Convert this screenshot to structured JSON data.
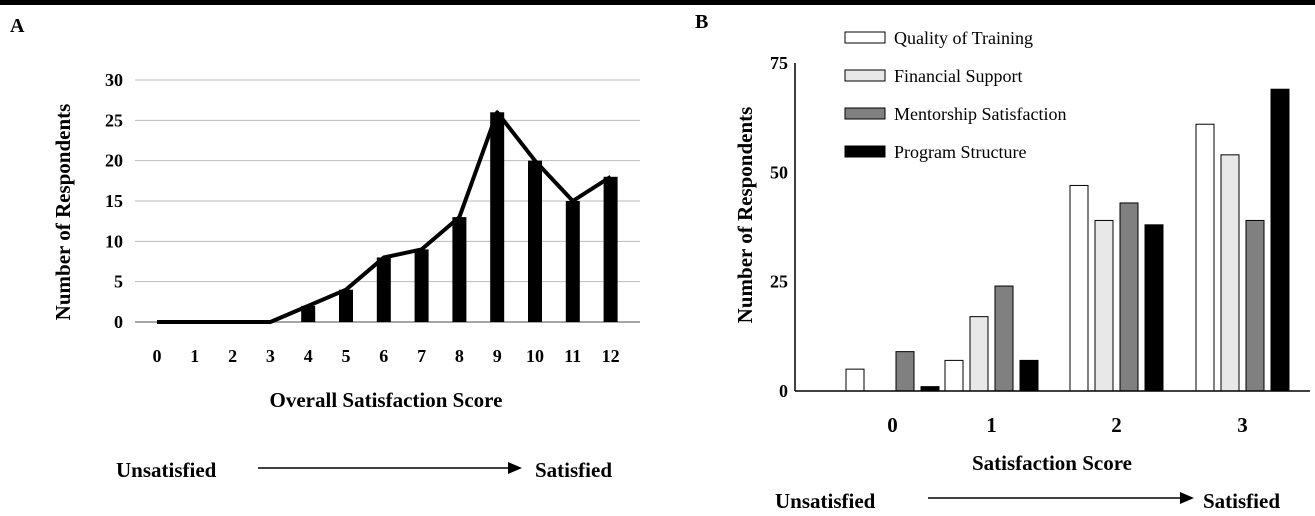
{
  "chart_data": [
    {
      "panel_label": "A",
      "type": "bar",
      "overlay": "line",
      "categories": [
        "0",
        "1",
        "2",
        "3",
        "4",
        "5",
        "6",
        "7",
        "8",
        "9",
        "10",
        "11",
        "12"
      ],
      "values": [
        0,
        0,
        0,
        0,
        2,
        4,
        8,
        9,
        13,
        26,
        20,
        15,
        18
      ],
      "xlabel": "Overall Satisfaction Score",
      "ylabel": "Number of Respondents",
      "ylim": [
        0,
        30
      ],
      "yticks": [
        "0",
        "5",
        "10",
        "15",
        "20",
        "25",
        "30"
      ],
      "grid": true,
      "colors": {
        "bar": "#000000",
        "line": "#000000",
        "grid": "#bbbbbb"
      },
      "arrow_left": "Unsatisfied",
      "arrow_right": "Satisfied"
    },
    {
      "panel_label": "B",
      "type": "bar",
      "categories": [
        "0",
        "1",
        "2",
        "3"
      ],
      "series": [
        {
          "name": "Quality of Training",
          "values": [
            5,
            7,
            47,
            61
          ],
          "color": "#ffffff"
        },
        {
          "name": "Financial Support",
          "values": [
            0,
            17,
            39,
            54
          ],
          "color": "#e8e8e8"
        },
        {
          "name": "Mentorship Satisfaction",
          "values": [
            9,
            24,
            43,
            39
          ],
          "color": "#808080"
        },
        {
          "name": "Program Structure",
          "values": [
            1,
            7,
            38,
            69
          ],
          "color": "#000000"
        }
      ],
      "xlabel": "Satisfaction Score",
      "ylabel": "Number of Respondents",
      "ylim": [
        0,
        75
      ],
      "yticks": [
        "0",
        "25",
        "50",
        "75"
      ],
      "grid": false,
      "legend": "top-left",
      "arrow_left": "Unsatisfied",
      "arrow_right": "Satisfied"
    }
  ]
}
